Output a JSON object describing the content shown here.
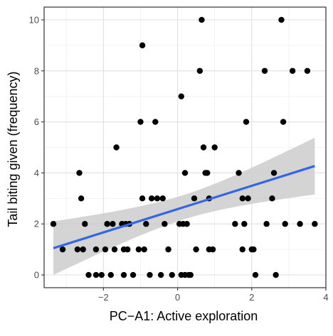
{
  "chart_data": {
    "type": "scatter",
    "xlabel": "PC−A1: Active exploration",
    "ylabel": "Tail biting given (frequency)",
    "xlim": [
      -3.6,
      4.0
    ],
    "ylim": [
      -0.5,
      10.5
    ],
    "x_ticks": [
      -2,
      0,
      2,
      4
    ],
    "x_tick_labels": [
      "−2",
      "0",
      "2",
      "4"
    ],
    "y_ticks": [
      0,
      2,
      4,
      6,
      8,
      10
    ],
    "y_tick_labels": [
      "0",
      "2",
      "4",
      "6",
      "8",
      "10"
    ],
    "grid": true,
    "point_color": "#000000",
    "fit_line_color": "#3366e6",
    "ribbon_color": "#cccccc",
    "points": [
      {
        "x": -3.35,
        "y": 2
      },
      {
        "x": -3.1,
        "y": 1
      },
      {
        "x": -2.7,
        "y": 1
      },
      {
        "x": -2.65,
        "y": 4
      },
      {
        "x": -2.6,
        "y": 3
      },
      {
        "x": -2.55,
        "y": 1
      },
      {
        "x": -2.5,
        "y": 2
      },
      {
        "x": -2.4,
        "y": 0
      },
      {
        "x": -2.2,
        "y": 1
      },
      {
        "x": -2.2,
        "y": 0
      },
      {
        "x": -2.05,
        "y": 0
      },
      {
        "x": -1.95,
        "y": 1
      },
      {
        "x": -1.9,
        "y": 2
      },
      {
        "x": -1.8,
        "y": 0
      },
      {
        "x": -1.75,
        "y": 2
      },
      {
        "x": -1.7,
        "y": 1
      },
      {
        "x": -1.65,
        "y": 5
      },
      {
        "x": -1.5,
        "y": 2
      },
      {
        "x": -1.45,
        "y": 1
      },
      {
        "x": -1.45,
        "y": 0
      },
      {
        "x": -1.4,
        "y": 2
      },
      {
        "x": -1.35,
        "y": 1
      },
      {
        "x": -1.3,
        "y": 2
      },
      {
        "x": -1.2,
        "y": 0
      },
      {
        "x": -1.05,
        "y": 1
      },
      {
        "x": -1.0,
        "y": 6
      },
      {
        "x": -0.95,
        "y": 9
      },
      {
        "x": -0.95,
        "y": 3
      },
      {
        "x": -0.9,
        "y": 1
      },
      {
        "x": -0.85,
        "y": 2
      },
      {
        "x": -0.75,
        "y": 0
      },
      {
        "x": -0.7,
        "y": 3
      },
      {
        "x": -0.6,
        "y": 6
      },
      {
        "x": -0.55,
        "y": 3
      },
      {
        "x": -0.45,
        "y": 0
      },
      {
        "x": -0.4,
        "y": 3
      },
      {
        "x": -0.35,
        "y": 2
      },
      {
        "x": -0.25,
        "y": 1
      },
      {
        "x": -0.15,
        "y": 0
      },
      {
        "x": 0.05,
        "y": 2
      },
      {
        "x": 0.1,
        "y": 7
      },
      {
        "x": 0.1,
        "y": 0
      },
      {
        "x": 0.15,
        "y": 2
      },
      {
        "x": 0.2,
        "y": 4
      },
      {
        "x": 0.2,
        "y": 0
      },
      {
        "x": 0.25,
        "y": 2
      },
      {
        "x": 0.3,
        "y": 0
      },
      {
        "x": 0.35,
        "y": 0
      },
      {
        "x": 0.45,
        "y": 3
      },
      {
        "x": 0.5,
        "y": 1
      },
      {
        "x": 0.6,
        "y": 8
      },
      {
        "x": 0.65,
        "y": 10
      },
      {
        "x": 0.7,
        "y": 5
      },
      {
        "x": 0.75,
        "y": 4
      },
      {
        "x": 0.8,
        "y": 4
      },
      {
        "x": 0.85,
        "y": 3
      },
      {
        "x": 0.85,
        "y": 1
      },
      {
        "x": 0.95,
        "y": 1
      },
      {
        "x": 1.0,
        "y": 5
      },
      {
        "x": 1.55,
        "y": 2
      },
      {
        "x": 1.65,
        "y": 4
      },
      {
        "x": 1.75,
        "y": 3
      },
      {
        "x": 1.75,
        "y": 1
      },
      {
        "x": 1.8,
        "y": 2
      },
      {
        "x": 1.85,
        "y": 6
      },
      {
        "x": 1.9,
        "y": 3
      },
      {
        "x": 2.0,
        "y": 1
      },
      {
        "x": 2.05,
        "y": 1
      },
      {
        "x": 2.1,
        "y": 0
      },
      {
        "x": 2.35,
        "y": 8
      },
      {
        "x": 2.4,
        "y": 2
      },
      {
        "x": 2.55,
        "y": 3
      },
      {
        "x": 2.6,
        "y": 4
      },
      {
        "x": 2.65,
        "y": 0
      },
      {
        "x": 2.8,
        "y": 10
      },
      {
        "x": 2.85,
        "y": 6
      },
      {
        "x": 2.9,
        "y": 2
      },
      {
        "x": 3.1,
        "y": 8
      },
      {
        "x": 3.3,
        "y": 2
      },
      {
        "x": 3.5,
        "y": 8
      },
      {
        "x": 3.7,
        "y": 2
      }
    ],
    "fit": {
      "x": [
        -3.35,
        3.7
      ],
      "y": [
        1.05,
        4.27
      ],
      "ci_lower": [
        0.0,
        3.15
      ],
      "ci_upper": [
        2.1,
        5.38
      ]
    }
  }
}
